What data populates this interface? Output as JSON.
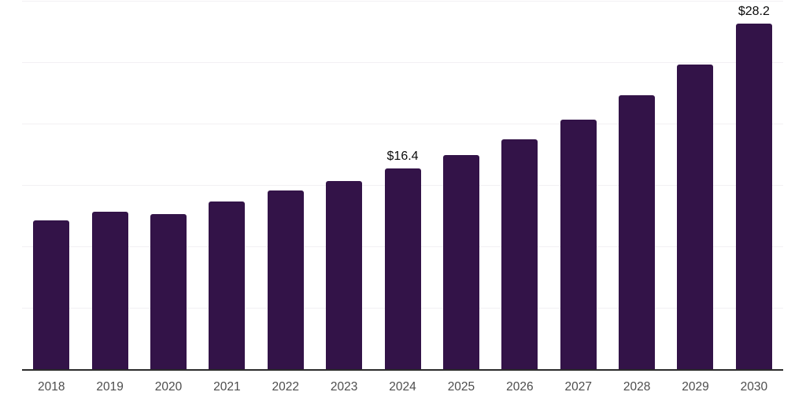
{
  "chart_data": {
    "type": "bar",
    "title": "",
    "categories": [
      "2018",
      "2019",
      "2020",
      "2021",
      "2022",
      "2023",
      "2024",
      "2025",
      "2026",
      "2027",
      "2028",
      "2029",
      "2030"
    ],
    "values": [
      12.2,
      12.9,
      12.7,
      13.7,
      14.6,
      15.4,
      16.4,
      17.5,
      18.8,
      20.4,
      22.4,
      24.9,
      28.2
    ],
    "data_labels": [
      "",
      "",
      "",
      "",
      "",
      "",
      "$16.4",
      "",
      "",
      "",
      "",
      "",
      "$28.2"
    ],
    "xlabel": "",
    "ylabel": "",
    "ylim": [
      0,
      30
    ],
    "gridline_step": 5,
    "grid": true,
    "legend": "none",
    "colors": {
      "bar_fill": "#331348",
      "gridline": "#f2f0f3",
      "axis_line": "#2b2b2b",
      "tick_label": "#4d4d4d",
      "data_label": "#0b0b0b",
      "background": "#ffffff"
    }
  }
}
